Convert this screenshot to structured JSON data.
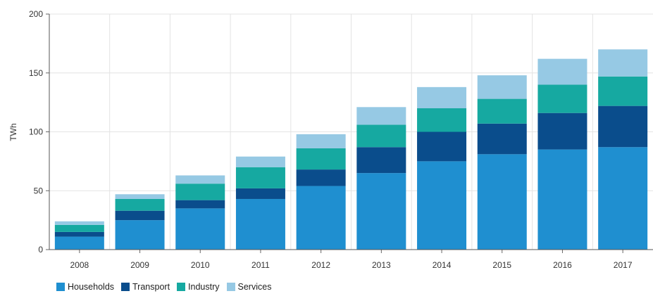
{
  "chart_data": {
    "type": "bar",
    "stacked": true,
    "categories": [
      "2008",
      "2009",
      "2010",
      "2011",
      "2012",
      "2013",
      "2014",
      "2015",
      "2016",
      "2017"
    ],
    "series": [
      {
        "name": "Households",
        "color": "#1f8fd0",
        "values": [
          11,
          25,
          35,
          43,
          54,
          65,
          75,
          81,
          85,
          87
        ]
      },
      {
        "name": "Transport",
        "color": "#0a4d8c",
        "values": [
          4,
          8,
          7,
          9,
          14,
          22,
          25,
          26,
          31,
          35
        ]
      },
      {
        "name": "Industry",
        "color": "#16a9a1",
        "values": [
          6,
          10,
          14,
          18,
          18,
          19,
          20,
          21,
          24,
          25
        ]
      },
      {
        "name": "Services",
        "color": "#96c9e4",
        "values": [
          3,
          4,
          7,
          9,
          12,
          15,
          18,
          20,
          22,
          23
        ]
      }
    ],
    "title": "",
    "xlabel": "",
    "ylabel": "TWh",
    "ylim": [
      0,
      200
    ],
    "yticks": [
      0,
      50,
      100,
      150,
      200
    ],
    "grid": true,
    "legend_position": "bottom-left"
  }
}
